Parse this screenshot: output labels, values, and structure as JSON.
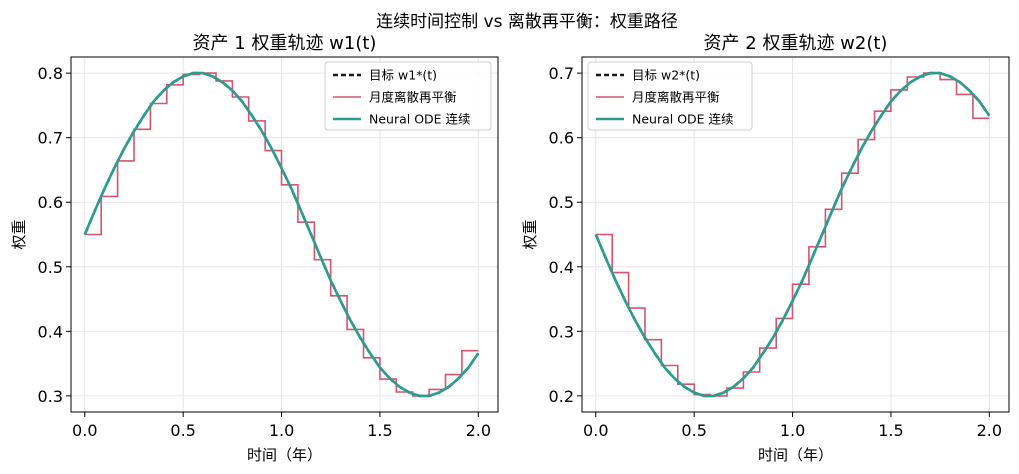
{
  "suptitle": "连续时间控制 vs 离散再平衡：权重路径",
  "colors": {
    "target": "#1a1a1a",
    "discrete": "#d4566c",
    "continuous": "#2a9d8f",
    "grid": "#e6e6e6"
  },
  "chart_data": [
    {
      "type": "line",
      "title": "资产 1 权重轨迹 w1(t)",
      "xlabel": "时间（年）",
      "ylabel": "权重",
      "xlim": [
        -0.07,
        2.1
      ],
      "ylim": [
        0.275,
        0.825
      ],
      "xticks": [
        "0.0",
        "0.5",
        "1.0",
        "1.5",
        "2.0"
      ],
      "yticks": [
        "0.3",
        "0.4",
        "0.5",
        "0.6",
        "0.7",
        "0.8"
      ],
      "grid": true,
      "legend_position": "top-right",
      "series": [
        {
          "name": "目标 w1*(t)",
          "style": "dashed",
          "x": [
            0,
            0.05,
            0.1,
            0.15,
            0.2,
            0.25,
            0.3,
            0.35,
            0.4,
            0.45,
            0.5,
            0.55,
            0.6,
            0.65,
            0.7,
            0.75,
            0.8,
            0.85,
            0.9,
            0.95,
            1.0,
            1.05,
            1.1,
            1.15,
            1.2,
            1.25,
            1.3,
            1.35,
            1.4,
            1.45,
            1.5,
            1.55,
            1.6,
            1.65,
            1.7,
            1.75,
            1.8,
            1.85,
            1.9,
            1.95,
            2.0
          ],
          "values": [
            0.55,
            0.586,
            0.621,
            0.653,
            0.683,
            0.71,
            0.734,
            0.756,
            0.773,
            0.786,
            0.795,
            0.8,
            0.8,
            0.795,
            0.786,
            0.773,
            0.756,
            0.734,
            0.71,
            0.683,
            0.653,
            0.621,
            0.586,
            0.55,
            0.514,
            0.479,
            0.447,
            0.417,
            0.39,
            0.366,
            0.344,
            0.327,
            0.314,
            0.305,
            0.3,
            0.3,
            0.305,
            0.314,
            0.327,
            0.344,
            0.366
          ]
        },
        {
          "name": "月度离散再平衡",
          "style": "step",
          "x": [
            0,
            0.0833,
            0.1667,
            0.25,
            0.3333,
            0.4167,
            0.5,
            0.5833,
            0.6667,
            0.75,
            0.8333,
            0.9167,
            1.0,
            1.0833,
            1.1667,
            1.25,
            1.3333,
            1.4167,
            1.5,
            1.5833,
            1.6667,
            1.75,
            1.8333,
            1.9167,
            2.0
          ],
          "values": [
            0.55,
            0.609,
            0.664,
            0.713,
            0.753,
            0.782,
            0.798,
            0.8,
            0.788,
            0.763,
            0.726,
            0.68,
            0.627,
            0.569,
            0.511,
            0.455,
            0.403,
            0.359,
            0.326,
            0.306,
            0.3,
            0.31,
            0.333,
            0.37,
            0.37
          ]
        },
        {
          "name": "Neural ODE 连续",
          "style": "solid",
          "x": [
            0,
            0.05,
            0.1,
            0.15,
            0.2,
            0.25,
            0.3,
            0.35,
            0.4,
            0.45,
            0.5,
            0.55,
            0.6,
            0.65,
            0.7,
            0.75,
            0.8,
            0.85,
            0.9,
            0.95,
            1.0,
            1.05,
            1.1,
            1.15,
            1.2,
            1.25,
            1.3,
            1.35,
            1.4,
            1.45,
            1.5,
            1.55,
            1.6,
            1.65,
            1.7,
            1.75,
            1.8,
            1.85,
            1.9,
            1.95,
            2.0
          ],
          "values": [
            0.55,
            0.586,
            0.621,
            0.653,
            0.683,
            0.71,
            0.734,
            0.756,
            0.773,
            0.786,
            0.795,
            0.8,
            0.8,
            0.795,
            0.786,
            0.773,
            0.756,
            0.734,
            0.71,
            0.683,
            0.653,
            0.621,
            0.586,
            0.55,
            0.514,
            0.479,
            0.447,
            0.417,
            0.39,
            0.366,
            0.344,
            0.327,
            0.314,
            0.305,
            0.3,
            0.3,
            0.305,
            0.314,
            0.327,
            0.344,
            0.366
          ]
        }
      ]
    },
    {
      "type": "line",
      "title": "资产 2 权重轨迹 w2(t)",
      "xlabel": "时间（年）",
      "ylabel": "权重",
      "xlim": [
        -0.07,
        2.1
      ],
      "ylim": [
        0.175,
        0.725
      ],
      "xticks": [
        "0.0",
        "0.5",
        "1.0",
        "1.5",
        "2.0"
      ],
      "yticks": [
        "0.2",
        "0.3",
        "0.4",
        "0.5",
        "0.6",
        "0.7"
      ],
      "grid": true,
      "legend_position": "top-left",
      "series": [
        {
          "name": "目标 w2*(t)",
          "style": "dashed",
          "x": [
            0,
            0.05,
            0.1,
            0.15,
            0.2,
            0.25,
            0.3,
            0.35,
            0.4,
            0.45,
            0.5,
            0.55,
            0.6,
            0.65,
            0.7,
            0.75,
            0.8,
            0.85,
            0.9,
            0.95,
            1.0,
            1.05,
            1.1,
            1.15,
            1.2,
            1.25,
            1.3,
            1.35,
            1.4,
            1.45,
            1.5,
            1.55,
            1.6,
            1.65,
            1.7,
            1.75,
            1.8,
            1.85,
            1.9,
            1.95,
            2.0
          ],
          "values": [
            0.45,
            0.414,
            0.379,
            0.347,
            0.317,
            0.29,
            0.266,
            0.244,
            0.227,
            0.214,
            0.205,
            0.2,
            0.2,
            0.205,
            0.214,
            0.227,
            0.244,
            0.266,
            0.29,
            0.317,
            0.347,
            0.379,
            0.414,
            0.45,
            0.486,
            0.521,
            0.553,
            0.583,
            0.61,
            0.634,
            0.656,
            0.673,
            0.686,
            0.695,
            0.7,
            0.7,
            0.695,
            0.686,
            0.673,
            0.656,
            0.634
          ]
        },
        {
          "name": "月度离散再平衡",
          "style": "step",
          "x": [
            0,
            0.0833,
            0.1667,
            0.25,
            0.3333,
            0.4167,
            0.5,
            0.5833,
            0.6667,
            0.75,
            0.8333,
            0.9167,
            1.0,
            1.0833,
            1.1667,
            1.25,
            1.3333,
            1.4167,
            1.5,
            1.5833,
            1.6667,
            1.75,
            1.8333,
            1.9167,
            2.0
          ],
          "values": [
            0.45,
            0.391,
            0.336,
            0.287,
            0.247,
            0.218,
            0.202,
            0.2,
            0.212,
            0.237,
            0.274,
            0.32,
            0.373,
            0.431,
            0.489,
            0.545,
            0.597,
            0.641,
            0.674,
            0.694,
            0.7,
            0.69,
            0.667,
            0.63,
            0.63
          ]
        },
        {
          "name": "Neural ODE 连续",
          "style": "solid",
          "x": [
            0,
            0.05,
            0.1,
            0.15,
            0.2,
            0.25,
            0.3,
            0.35,
            0.4,
            0.45,
            0.5,
            0.55,
            0.6,
            0.65,
            0.7,
            0.75,
            0.8,
            0.85,
            0.9,
            0.95,
            1.0,
            1.05,
            1.1,
            1.15,
            1.2,
            1.25,
            1.3,
            1.35,
            1.4,
            1.45,
            1.5,
            1.55,
            1.6,
            1.65,
            1.7,
            1.75,
            1.8,
            1.85,
            1.9,
            1.95,
            2.0
          ],
          "values": [
            0.45,
            0.414,
            0.379,
            0.347,
            0.317,
            0.29,
            0.266,
            0.244,
            0.227,
            0.214,
            0.205,
            0.2,
            0.2,
            0.205,
            0.214,
            0.227,
            0.244,
            0.266,
            0.29,
            0.317,
            0.347,
            0.379,
            0.414,
            0.45,
            0.486,
            0.521,
            0.553,
            0.583,
            0.61,
            0.634,
            0.656,
            0.673,
            0.686,
            0.695,
            0.7,
            0.7,
            0.695,
            0.686,
            0.673,
            0.656,
            0.634
          ]
        }
      ]
    }
  ]
}
